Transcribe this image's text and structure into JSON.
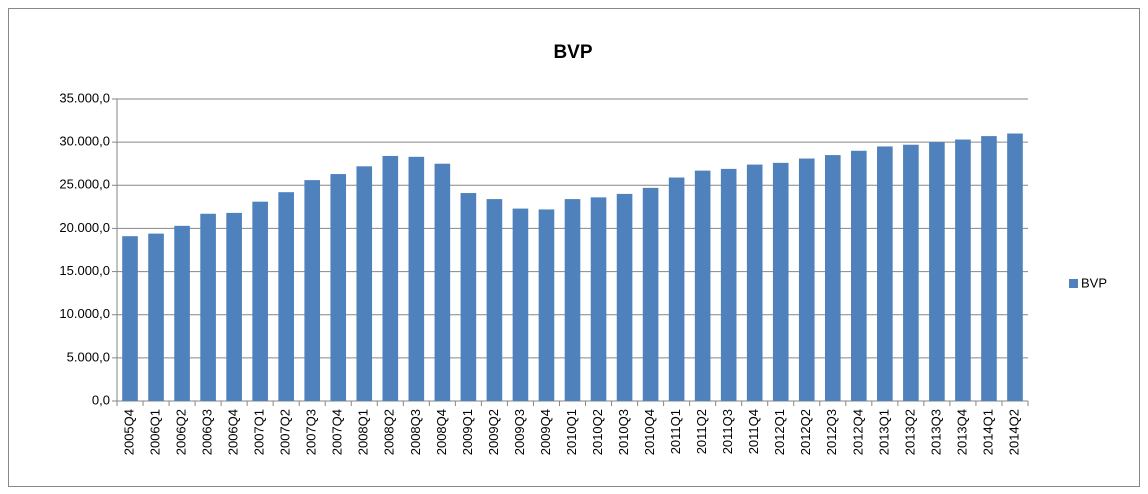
{
  "chart_data": {
    "type": "bar",
    "title": "BVP",
    "categories": [
      "2005Q4",
      "2006Q1",
      "2006Q2",
      "2006Q3",
      "2006Q4",
      "2007Q1",
      "2007Q2",
      "2007Q3",
      "2007Q4",
      "2008Q1",
      "2008Q2",
      "2008Q3",
      "2008Q4",
      "2009Q1",
      "2009Q2",
      "2009Q3",
      "2009Q4",
      "2010Q1",
      "2010Q2",
      "2010Q3",
      "2010Q4",
      "2011Q1",
      "2011Q2",
      "2011Q3",
      "2011Q4",
      "2012Q1",
      "2012Q2",
      "2012Q3",
      "2012Q4",
      "2013Q1",
      "2013Q2",
      "2013Q3",
      "2013Q4",
      "2014Q1",
      "2014Q2"
    ],
    "series": [
      {
        "name": "BVP",
        "color": "#4f81bd",
        "values": [
          19100,
          19400,
          20300,
          21700,
          21800,
          23100,
          24200,
          25600,
          26300,
          27200,
          28400,
          28300,
          27500,
          24100,
          23400,
          22300,
          22200,
          23400,
          23600,
          24000,
          24700,
          25900,
          26700,
          26900,
          27400,
          27600,
          28100,
          28500,
          29000,
          29500,
          29700,
          30000,
          30300,
          30700,
          31000
        ]
      }
    ],
    "ylim": [
      0,
      35000
    ],
    "yticks": [
      {
        "value": 0,
        "label": "0,0"
      },
      {
        "value": 5000,
        "label": "5.000,0"
      },
      {
        "value": 10000,
        "label": "10.000,0"
      },
      {
        "value": 15000,
        "label": "15.000,0"
      },
      {
        "value": 20000,
        "label": "20.000,0"
      },
      {
        "value": 25000,
        "label": "25.000,0"
      },
      {
        "value": 30000,
        "label": "30.000,0"
      },
      {
        "value": 35000,
        "label": "35.000,0"
      }
    ],
    "grid": true,
    "legend": "right"
  }
}
